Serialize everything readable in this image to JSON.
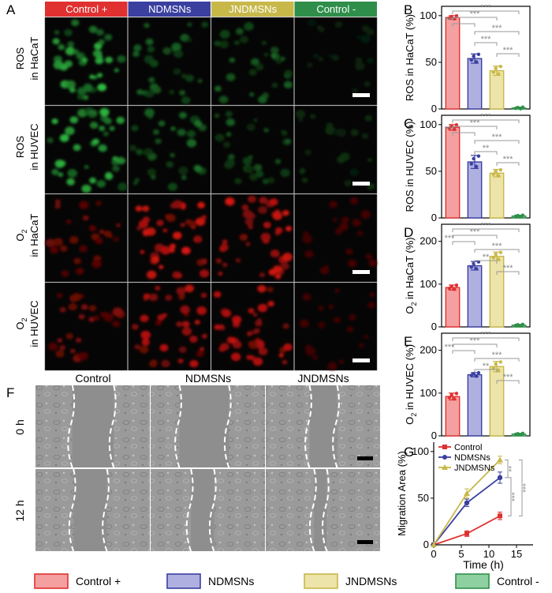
{
  "colors": {
    "control_pos": "#e03030",
    "ndmsns": "#3a3fa0",
    "jndmsns": "#c8b84a",
    "control_neg": "#2f8f4a",
    "control_pos_fill": "#f5a0a0",
    "ndmsns_fill": "#b0b0e0",
    "jndmsns_fill": "#ece4a8",
    "control_neg_fill": "#8fd0a0",
    "sig_line": "#999999"
  },
  "panel_letters": {
    "A": "A",
    "B": "B",
    "C": "C",
    "D": "D",
    "E": "E",
    "F": "F",
    "G": "G"
  },
  "panelA": {
    "headers": [
      "Control +",
      "NDMSNs",
      "JNDMSNs",
      "Control -"
    ],
    "row_labels": [
      {
        "main": "ROS",
        "sub": "",
        "second": "in HaCaT"
      },
      {
        "main": "ROS",
        "sub": "",
        "second": "in HUVEC"
      },
      {
        "main": "O",
        "sub": "2",
        "second": "in HaCaT"
      },
      {
        "main": "O",
        "sub": "2",
        "second": "in HUVEC"
      }
    ]
  },
  "panelF": {
    "headers": [
      "Control",
      "NDMSNs",
      "JNDMSNs"
    ],
    "row_labels": [
      "0 h",
      "12 h"
    ]
  },
  "legend": [
    "Control +",
    "NDMSNs",
    "JNDMSNs",
    "Control -"
  ],
  "chart_data": [
    {
      "type": "bar",
      "panel": "B",
      "categories": [
        "Control +",
        "NDMSNs",
        "JNDMSNs",
        "Control -"
      ],
      "values": [
        98,
        54,
        41,
        1
      ],
      "errors": [
        2,
        5,
        5,
        1
      ],
      "ylabel": "ROS in HaCaT (%)",
      "ylim": [
        0,
        110
      ],
      "yticks": [
        0,
        50,
        100
      ],
      "significance": [
        {
          "from": 0,
          "to": 1,
          "label": "***"
        },
        {
          "from": 0,
          "to": 2,
          "label": "***"
        },
        {
          "from": 0,
          "to": 3,
          "label": "***"
        },
        {
          "from": 1,
          "to": 2,
          "label": "***"
        },
        {
          "from": 1,
          "to": 3,
          "label": "***"
        },
        {
          "from": 2,
          "to": 3,
          "label": "***"
        }
      ]
    },
    {
      "type": "bar",
      "panel": "C",
      "categories": [
        "Control +",
        "NDMSNs",
        "JNDMSNs",
        "Control -"
      ],
      "values": [
        97,
        60,
        48,
        2
      ],
      "errors": [
        3,
        7,
        4,
        1
      ],
      "ylabel": "ROS in HUVEC (%)",
      "ylim": [
        0,
        110
      ],
      "yticks": [
        0,
        50,
        100
      ],
      "significance": [
        {
          "from": 0,
          "to": 1,
          "label": "***"
        },
        {
          "from": 0,
          "to": 2,
          "label": "***"
        },
        {
          "from": 0,
          "to": 3,
          "label": "***"
        },
        {
          "from": 1,
          "to": 2,
          "label": "**"
        },
        {
          "from": 1,
          "to": 3,
          "label": "***"
        },
        {
          "from": 2,
          "to": 3,
          "label": "***"
        }
      ]
    },
    {
      "type": "bar",
      "panel": "D",
      "categories": [
        "Control +",
        "NDMSNs",
        "JNDMSNs",
        "Control -"
      ],
      "values": [
        92,
        143,
        165,
        4
      ],
      "errors": [
        6,
        10,
        10,
        2
      ],
      "ylabel": "O2 in HaCaT (%)",
      "ylim": [
        0,
        240
      ],
      "yticks": [
        0,
        100,
        200
      ],
      "significance": [
        {
          "from": 0,
          "to": 1,
          "label": "***"
        },
        {
          "from": 0,
          "to": 2,
          "label": "***"
        },
        {
          "from": 0,
          "to": 3,
          "label": "***"
        },
        {
          "from": 1,
          "to": 2,
          "label": "**"
        },
        {
          "from": 1,
          "to": 3,
          "label": "***"
        },
        {
          "from": 2,
          "to": 3,
          "label": "***"
        }
      ]
    },
    {
      "type": "bar",
      "panel": "E",
      "categories": [
        "Control +",
        "NDMSNs",
        "JNDMSNs",
        "Control -"
      ],
      "values": [
        92,
        143,
        162,
        4
      ],
      "errors": [
        8,
        5,
        12,
        2
      ],
      "ylabel": "O2 in HUVEC (%)",
      "ylim": [
        0,
        240
      ],
      "yticks": [
        0,
        100,
        200
      ],
      "significance": [
        {
          "from": 0,
          "to": 1,
          "label": "***"
        },
        {
          "from": 0,
          "to": 2,
          "label": "***"
        },
        {
          "from": 0,
          "to": 3,
          "label": "***"
        },
        {
          "from": 1,
          "to": 2,
          "label": "**"
        },
        {
          "from": 1,
          "to": 3,
          "label": "***"
        },
        {
          "from": 2,
          "to": 3,
          "label": "***"
        }
      ]
    },
    {
      "type": "line",
      "panel": "G",
      "xlabel": "Time (h)",
      "ylabel": "Migration Area (%)",
      "xlim": [
        0,
        18
      ],
      "ylim": [
        0,
        110
      ],
      "xticks": [
        0,
        5,
        10,
        15
      ],
      "yticks": [
        0,
        50,
        100
      ],
      "series": [
        {
          "name": "Control",
          "x": [
            0,
            6,
            12
          ],
          "y": [
            0,
            12,
            31
          ],
          "err": [
            0,
            3,
            4
          ],
          "color": "#e03030",
          "marker": "square"
        },
        {
          "name": "NDMSNs",
          "x": [
            0,
            6,
            12
          ],
          "y": [
            0,
            45,
            72
          ],
          "err": [
            0,
            4,
            6
          ],
          "color": "#3a3fa0",
          "marker": "circle"
        },
        {
          "name": "JNDMSNs",
          "x": [
            0,
            6,
            12
          ],
          "y": [
            0,
            55,
            91
          ],
          "err": [
            0,
            5,
            4
          ],
          "color": "#c8b84a",
          "marker": "triangle"
        }
      ],
      "significance": [
        {
          "label": "**"
        },
        {
          "label": "***"
        },
        {
          "label": "***"
        }
      ]
    }
  ]
}
